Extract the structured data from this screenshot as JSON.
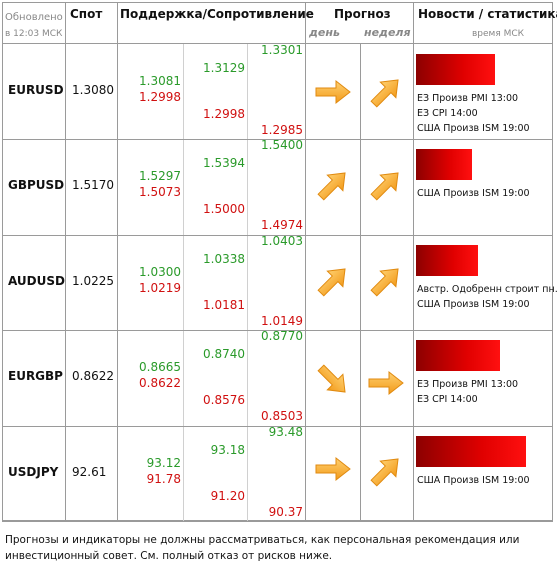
{
  "header": {
    "updated": "Обновлено",
    "time": "в 12:03 МСК",
    "spot": "Спот",
    "levels": "Поддержка/Сопротивление",
    "forecast": "Прогноз",
    "day": "день",
    "week": "неделя",
    "news": "Новости / статистика",
    "news_time": "время МСК"
  },
  "rows": [
    {
      "pair": "EURUSD",
      "spot": "1.3080",
      "levels": [
        "1.3081",
        "1.2998",
        "1.3129",
        "1.2998",
        "1.3301",
        "1.2985"
      ],
      "news": [
        "ЕЗ Произв PMI 13:00",
        "ЕЗ CPI 14:00",
        "США Произв ISM 19:00"
      ]
    },
    {
      "pair": "GBPUSD",
      "spot": "1.5170",
      "levels": [
        "1.5297",
        "1.5073",
        "1.5394",
        "1.5000",
        "1.5400",
        "1.4974"
      ],
      "news": [
        "США Произв ISM 19:00"
      ]
    },
    {
      "pair": "AUDUSD",
      "spot": "1.0225",
      "levels": [
        "1.0300",
        "1.0219",
        "1.0338",
        "1.0181",
        "1.0403",
        "1.0149"
      ],
      "news": [
        "Австр. Одобренн строит пн.",
        "США Произв ISM 19:00"
      ]
    },
    {
      "pair": "EURGBP",
      "spot": "0.8622",
      "levels": [
        "0.8665",
        "0.8622",
        "0.8740",
        "0.8576",
        "0.8770",
        "0.8503"
      ],
      "news": [
        "ЕЗ Произв PMI 13:00",
        "ЕЗ CPI 14:00"
      ]
    },
    {
      "pair": "USDJPY",
      "spot": "92.61",
      "levels": [
        "93.12",
        "91.78",
        "93.18",
        "91.20",
        "93.48",
        "90.37"
      ],
      "news": [
        "США Произв ISM 19:00"
      ]
    }
  ],
  "footer": "Прогнозы и индикаторы не должны рассматриваться, как персональная рекомендация или инвестиционный совет. См. полный отказ от рисков ниже."
}
